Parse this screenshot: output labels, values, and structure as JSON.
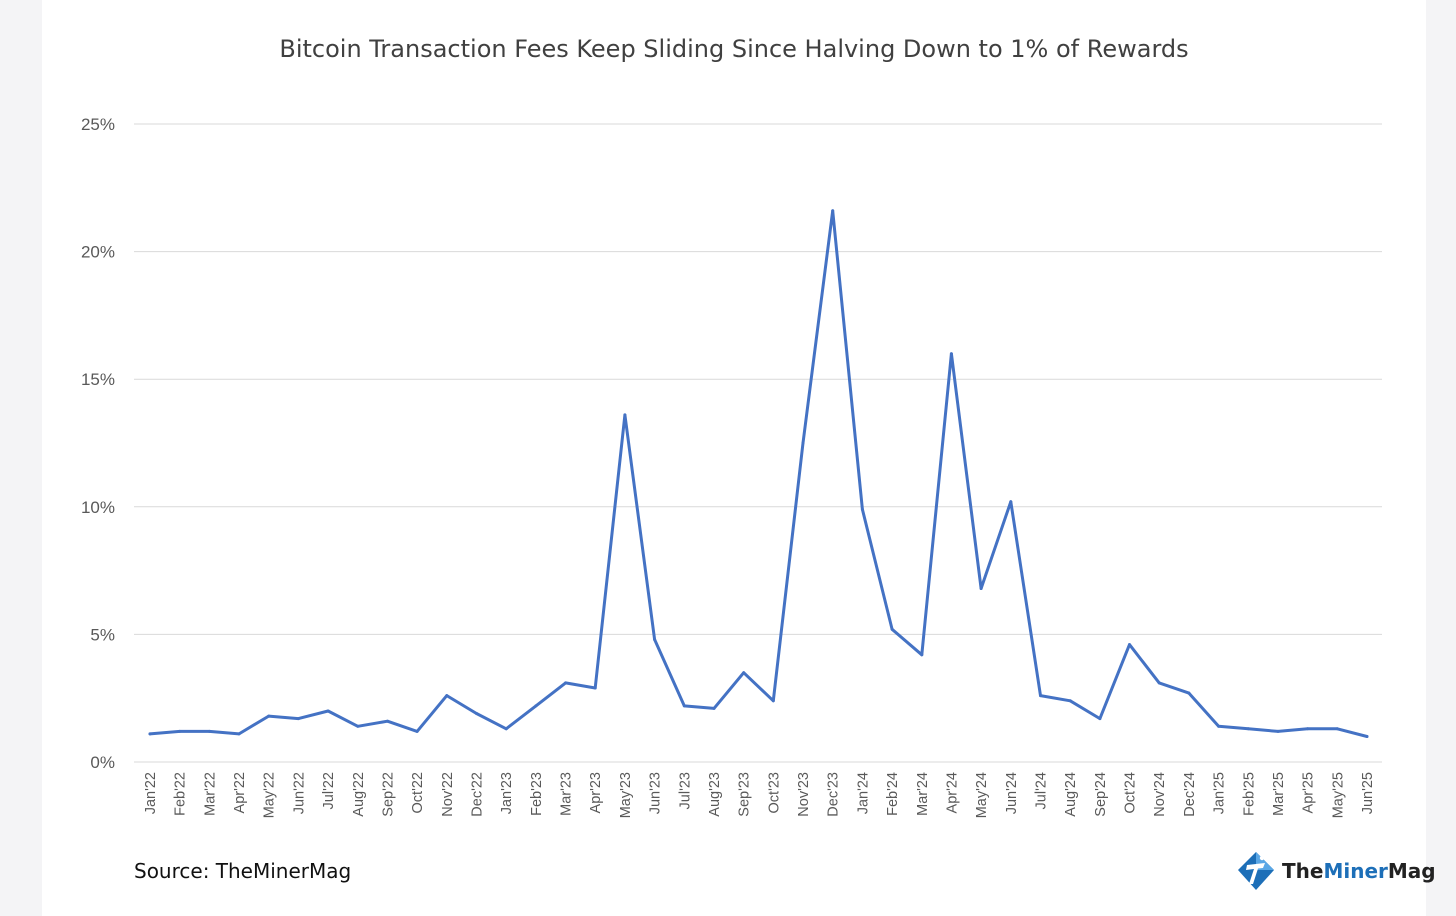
{
  "source_label": "Source: TheMinerMag",
  "brand": {
    "prefix": "The",
    "accent": "Miner",
    "suffix": "Mag",
    "icon": "theminermag-logo-icon"
  },
  "colors": {
    "line": "#4472c4",
    "grid": "#d9d9d9",
    "text": "#595959",
    "brand_accent": "#1d6fb8"
  },
  "chart_data": {
    "type": "line",
    "title": "Bitcoin Transaction Fees Keep Sliding Since Halving Down to 1% of Rewards",
    "xlabel": "",
    "ylabel": "",
    "ylim": [
      0,
      25
    ],
    "yticks": [
      0,
      5,
      10,
      15,
      20,
      25
    ],
    "ytick_labels": [
      "0%",
      "5%",
      "10%",
      "15%",
      "20%",
      "25%"
    ],
    "grid": true,
    "categories": [
      "Jan'22",
      "Feb'22",
      "Mar'22",
      "Apr'22",
      "May'22",
      "Jun'22",
      "Jul'22",
      "Aug'22",
      "Sep'22",
      "Oct'22",
      "Nov'22",
      "Dec'22",
      "Jan'23",
      "Feb'23",
      "Mar'23",
      "Apr'23",
      "May'23",
      "Jun'23",
      "Jul'23",
      "Aug'23",
      "Sep'23",
      "Oct'23",
      "Nov'23",
      "Dec'23",
      "Jan'24",
      "Feb'24",
      "Mar'24",
      "Apr'24",
      "May'24",
      "Jun'24",
      "Jul'24",
      "Aug'24",
      "Sep'24",
      "Oct'24",
      "Nov'24",
      "Dec'24",
      "Jan'25",
      "Feb'25",
      "Mar'25",
      "Apr'25",
      "May'25",
      "Jun'25"
    ],
    "series": [
      {
        "values": [
          1.1,
          1.2,
          1.2,
          1.1,
          1.8,
          1.7,
          2.0,
          1.4,
          1.6,
          1.2,
          2.6,
          1.9,
          1.3,
          2.2,
          3.1,
          2.9,
          13.6,
          4.8,
          2.2,
          2.1,
          3.5,
          2.4,
          12.5,
          21.6,
          9.9,
          5.2,
          4.2,
          16.0,
          6.8,
          10.2,
          2.6,
          2.4,
          1.7,
          4.6,
          3.1,
          2.7,
          1.4,
          1.3,
          1.2,
          1.3,
          1.3,
          1.0
        ]
      }
    ]
  }
}
